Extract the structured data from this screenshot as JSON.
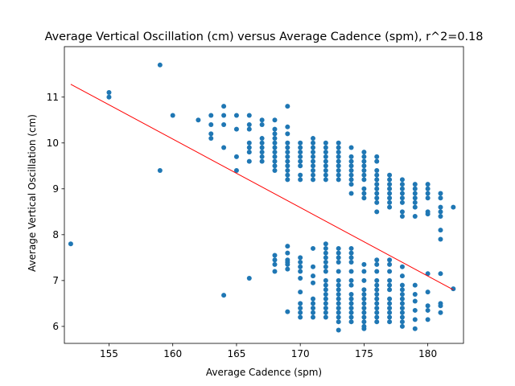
{
  "chart_data": {
    "type": "scatter",
    "title": "Average Vertical Oscillation (cm) versus Average Cadence (spm), r^2=0.18",
    "xlabel": "Average Cadence (spm)",
    "ylabel": "Average Vertical Oscillation (cm)",
    "xlim": [
      151.5,
      182.8
    ],
    "ylim": [
      5.63,
      12.1
    ],
    "xticks": [
      155,
      160,
      165,
      170,
      175,
      180
    ],
    "yticks": [
      6,
      7,
      8,
      9,
      10,
      11
    ],
    "grid": false,
    "legend": "none",
    "colors": {
      "points": "#1f77b4",
      "fit_line": "#ff0000",
      "frame": "#000000"
    },
    "points": [
      [
        152,
        7.8
      ],
      [
        155,
        11.1
      ],
      [
        155,
        11.0
      ],
      [
        159,
        11.7
      ],
      [
        159,
        9.4
      ],
      [
        160,
        10.6
      ],
      [
        162,
        10.5
      ],
      [
        163,
        10.6
      ],
      [
        163,
        10.4
      ],
      [
        163,
        10.2
      ],
      [
        163,
        10.1
      ],
      [
        164,
        10.8
      ],
      [
        164,
        10.6
      ],
      [
        164,
        10.4
      ],
      [
        164,
        9.9
      ],
      [
        164,
        6.68
      ],
      [
        165,
        10.6
      ],
      [
        165,
        10.3
      ],
      [
        165,
        9.7
      ],
      [
        165,
        9.4
      ],
      [
        166,
        10.6
      ],
      [
        166,
        10.4
      ],
      [
        166,
        10.3
      ],
      [
        166,
        10.0
      ],
      [
        166,
        9.9
      ],
      [
        166,
        9.8
      ],
      [
        166,
        9.6
      ],
      [
        166,
        7.05
      ],
      [
        167,
        10.5
      ],
      [
        167,
        10.4
      ],
      [
        167,
        10.1
      ],
      [
        167,
        10.0
      ],
      [
        167,
        9.9
      ],
      [
        167,
        9.8
      ],
      [
        167,
        9.7
      ],
      [
        167,
        9.6
      ],
      [
        168,
        10.5
      ],
      [
        168,
        10.3
      ],
      [
        168,
        10.2
      ],
      [
        168,
        10.1
      ],
      [
        168,
        10.0
      ],
      [
        168,
        9.9
      ],
      [
        168,
        9.8
      ],
      [
        168,
        9.7
      ],
      [
        168,
        9.6
      ],
      [
        168,
        9.5
      ],
      [
        168,
        9.4
      ],
      [
        168,
        7.55
      ],
      [
        168,
        7.45
      ],
      [
        168,
        7.35
      ],
      [
        168,
        7.2
      ],
      [
        169,
        10.8
      ],
      [
        169,
        10.35
      ],
      [
        169,
        10.2
      ],
      [
        169,
        10.0
      ],
      [
        169,
        9.9
      ],
      [
        169,
        9.8
      ],
      [
        169,
        9.7
      ],
      [
        169,
        9.6
      ],
      [
        169,
        9.5
      ],
      [
        169,
        9.4
      ],
      [
        169,
        9.3
      ],
      [
        169,
        9.2
      ],
      [
        169,
        7.75
      ],
      [
        169,
        7.6
      ],
      [
        169,
        7.45
      ],
      [
        169,
        7.4
      ],
      [
        169,
        7.35
      ],
      [
        169,
        7.25
      ],
      [
        169,
        6.32
      ],
      [
        170,
        10.0
      ],
      [
        170,
        9.9
      ],
      [
        170,
        9.8
      ],
      [
        170,
        9.7
      ],
      [
        170,
        9.6
      ],
      [
        170,
        9.5
      ],
      [
        170,
        9.3
      ],
      [
        170,
        9.2
      ],
      [
        170,
        7.5
      ],
      [
        170,
        7.4
      ],
      [
        170,
        7.3
      ],
      [
        170,
        7.2
      ],
      [
        170,
        7.05
      ],
      [
        170,
        6.75
      ],
      [
        170,
        6.5
      ],
      [
        170,
        6.4
      ],
      [
        170,
        6.3
      ],
      [
        170,
        6.2
      ],
      [
        171,
        10.1
      ],
      [
        171,
        10.0
      ],
      [
        171,
        9.9
      ],
      [
        171,
        9.8
      ],
      [
        171,
        9.7
      ],
      [
        171,
        9.6
      ],
      [
        171,
        9.5
      ],
      [
        171,
        9.4
      ],
      [
        171,
        9.3
      ],
      [
        171,
        9.2
      ],
      [
        171,
        7.7
      ],
      [
        171,
        7.3
      ],
      [
        171,
        7.1
      ],
      [
        171,
        6.95
      ],
      [
        171,
        6.6
      ],
      [
        171,
        6.5
      ],
      [
        171,
        6.4
      ],
      [
        171,
        6.3
      ],
      [
        171,
        6.2
      ],
      [
        172,
        10.0
      ],
      [
        172,
        9.9
      ],
      [
        172,
        9.8
      ],
      [
        172,
        9.7
      ],
      [
        172,
        9.6
      ],
      [
        172,
        9.5
      ],
      [
        172,
        9.4
      ],
      [
        172,
        9.3
      ],
      [
        172,
        9.2
      ],
      [
        172,
        7.8
      ],
      [
        172,
        7.7
      ],
      [
        172,
        7.6
      ],
      [
        172,
        7.5
      ],
      [
        172,
        7.4
      ],
      [
        172,
        7.3
      ],
      [
        172,
        7.2
      ],
      [
        172,
        7.0
      ],
      [
        172,
        6.9
      ],
      [
        172,
        6.8
      ],
      [
        172,
        6.7
      ],
      [
        172,
        6.6
      ],
      [
        172,
        6.5
      ],
      [
        172,
        6.4
      ],
      [
        172,
        6.3
      ],
      [
        172,
        6.2
      ],
      [
        173,
        10.0
      ],
      [
        173,
        9.9
      ],
      [
        173,
        9.8
      ],
      [
        173,
        9.7
      ],
      [
        173,
        9.6
      ],
      [
        173,
        9.5
      ],
      [
        173,
        9.4
      ],
      [
        173,
        9.3
      ],
      [
        173,
        9.2
      ],
      [
        173,
        7.7
      ],
      [
        173,
        7.6
      ],
      [
        173,
        7.5
      ],
      [
        173,
        7.4
      ],
      [
        173,
        7.2
      ],
      [
        173,
        7.0
      ],
      [
        173,
        6.9
      ],
      [
        173,
        6.8
      ],
      [
        173,
        6.7
      ],
      [
        173,
        6.6
      ],
      [
        173,
        6.5
      ],
      [
        173,
        6.4
      ],
      [
        173,
        6.3
      ],
      [
        173,
        6.2
      ],
      [
        173,
        6.1
      ],
      [
        173,
        5.92
      ],
      [
        174,
        9.9
      ],
      [
        174,
        9.7
      ],
      [
        174,
        9.6
      ],
      [
        174,
        9.5
      ],
      [
        174,
        9.4
      ],
      [
        174,
        9.3
      ],
      [
        174,
        9.2
      ],
      [
        174,
        9.1
      ],
      [
        174,
        8.9
      ],
      [
        174,
        7.7
      ],
      [
        174,
        7.6
      ],
      [
        174,
        7.5
      ],
      [
        174,
        7.4
      ],
      [
        174,
        7.2
      ],
      [
        174,
        7.0
      ],
      [
        174,
        6.9
      ],
      [
        174,
        6.7
      ],
      [
        174,
        6.6
      ],
      [
        174,
        6.5
      ],
      [
        174,
        6.4
      ],
      [
        174,
        6.3
      ],
      [
        174,
        6.2
      ],
      [
        174,
        6.1
      ],
      [
        175,
        9.8
      ],
      [
        175,
        9.7
      ],
      [
        175,
        9.6
      ],
      [
        175,
        9.5
      ],
      [
        175,
        9.4
      ],
      [
        175,
        9.3
      ],
      [
        175,
        9.2
      ],
      [
        175,
        9.0
      ],
      [
        175,
        8.9
      ],
      [
        175,
        8.8
      ],
      [
        175,
        7.35
      ],
      [
        175,
        7.2
      ],
      [
        175,
        7.0
      ],
      [
        175,
        6.8
      ],
      [
        175,
        6.7
      ],
      [
        175,
        6.6
      ],
      [
        175,
        6.5
      ],
      [
        175,
        6.4
      ],
      [
        175,
        6.3
      ],
      [
        175,
        6.2
      ],
      [
        175,
        6.1
      ],
      [
        175,
        6.0
      ],
      [
        175,
        5.95
      ],
      [
        176,
        9.7
      ],
      [
        176,
        9.6
      ],
      [
        176,
        9.4
      ],
      [
        176,
        9.3
      ],
      [
        176,
        9.2
      ],
      [
        176,
        9.1
      ],
      [
        176,
        9.0
      ],
      [
        176,
        8.9
      ],
      [
        176,
        8.8
      ],
      [
        176,
        8.7
      ],
      [
        176,
        8.5
      ],
      [
        176,
        7.45
      ],
      [
        176,
        7.35
      ],
      [
        176,
        7.2
      ],
      [
        176,
        7.0
      ],
      [
        176,
        6.9
      ],
      [
        176,
        6.8
      ],
      [
        176,
        6.7
      ],
      [
        176,
        6.6
      ],
      [
        176,
        6.5
      ],
      [
        176,
        6.4
      ],
      [
        176,
        6.3
      ],
      [
        176,
        6.2
      ],
      [
        176,
        6.1
      ],
      [
        177,
        9.3
      ],
      [
        177,
        9.2
      ],
      [
        177,
        9.1
      ],
      [
        177,
        9.0
      ],
      [
        177,
        8.9
      ],
      [
        177,
        8.8
      ],
      [
        177,
        8.7
      ],
      [
        177,
        8.6
      ],
      [
        177,
        7.45
      ],
      [
        177,
        7.35
      ],
      [
        177,
        7.2
      ],
      [
        177,
        7.0
      ],
      [
        177,
        6.9
      ],
      [
        177,
        6.8
      ],
      [
        177,
        6.6
      ],
      [
        177,
        6.5
      ],
      [
        177,
        6.4
      ],
      [
        177,
        6.3
      ],
      [
        177,
        6.2
      ],
      [
        177,
        6.1
      ],
      [
        178,
        9.2
      ],
      [
        178,
        9.1
      ],
      [
        178,
        9.0
      ],
      [
        178,
        8.9
      ],
      [
        178,
        8.8
      ],
      [
        178,
        8.7
      ],
      [
        178,
        8.5
      ],
      [
        178,
        8.4
      ],
      [
        178,
        7.3
      ],
      [
        178,
        7.1
      ],
      [
        178,
        6.9
      ],
      [
        178,
        6.8
      ],
      [
        178,
        6.7
      ],
      [
        178,
        6.6
      ],
      [
        178,
        6.5
      ],
      [
        178,
        6.4
      ],
      [
        178,
        6.3
      ],
      [
        178,
        6.2
      ],
      [
        178,
        6.1
      ],
      [
        178,
        6.0
      ],
      [
        179,
        9.1
      ],
      [
        179,
        9.0
      ],
      [
        179,
        8.9
      ],
      [
        179,
        8.8
      ],
      [
        179,
        8.7
      ],
      [
        179,
        8.6
      ],
      [
        179,
        8.4
      ],
      [
        179,
        6.9
      ],
      [
        179,
        6.7
      ],
      [
        179,
        6.55
      ],
      [
        179,
        6.35
      ],
      [
        179,
        6.15
      ],
      [
        179,
        5.95
      ],
      [
        180,
        9.1
      ],
      [
        180,
        9.0
      ],
      [
        180,
        8.9
      ],
      [
        180,
        8.8
      ],
      [
        180,
        8.5
      ],
      [
        180,
        8.45
      ],
      [
        180,
        7.15
      ],
      [
        180,
        6.75
      ],
      [
        180,
        6.45
      ],
      [
        180,
        6.35
      ],
      [
        180,
        6.15
      ],
      [
        181,
        8.9
      ],
      [
        181,
        8.8
      ],
      [
        181,
        8.6
      ],
      [
        181,
        8.5
      ],
      [
        181,
        8.4
      ],
      [
        181,
        8.1
      ],
      [
        181,
        7.9
      ],
      [
        181,
        7.15
      ],
      [
        181,
        6.5
      ],
      [
        181,
        6.45
      ],
      [
        181,
        6.3
      ],
      [
        182,
        8.6
      ],
      [
        182,
        6.82
      ]
    ],
    "fit_line": {
      "x": [
        152,
        182
      ],
      "y": [
        11.28,
        6.8
      ]
    }
  }
}
